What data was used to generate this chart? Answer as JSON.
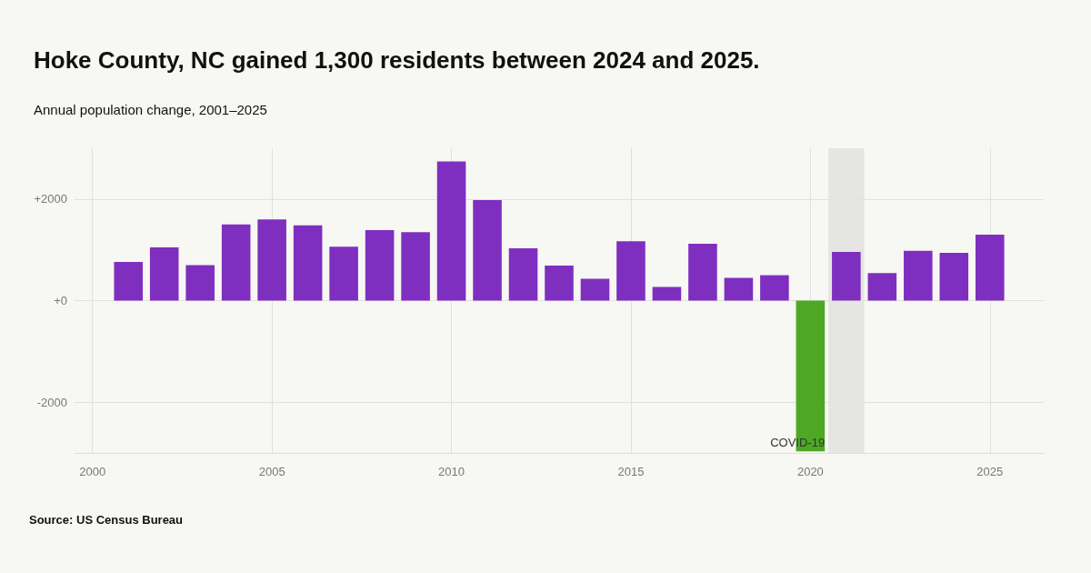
{
  "chart_data": {
    "type": "bar",
    "title": "Hoke County, NC gained 1,300 residents between 2024 and 2025.",
    "subtitle": "Annual population change, 2001–2025",
    "x": [
      2001,
      2002,
      2003,
      2004,
      2005,
      2006,
      2007,
      2008,
      2009,
      2010,
      2011,
      2012,
      2013,
      2014,
      2015,
      2016,
      2017,
      2018,
      2019,
      2020,
      2021,
      2022,
      2023,
      2024,
      2025
    ],
    "values": [
      760,
      1050,
      700,
      1500,
      1600,
      1480,
      1060,
      1390,
      1350,
      2740,
      1980,
      1030,
      690,
      430,
      1170,
      270,
      1120,
      450,
      500,
      -2970,
      960,
      540,
      980,
      940,
      1300
    ],
    "colors": [
      "#7f2fbf",
      "#7f2fbf",
      "#7f2fbf",
      "#7f2fbf",
      "#7f2fbf",
      "#7f2fbf",
      "#7f2fbf",
      "#7f2fbf",
      "#7f2fbf",
      "#7f2fbf",
      "#7f2fbf",
      "#7f2fbf",
      "#7f2fbf",
      "#7f2fbf",
      "#7f2fbf",
      "#7f2fbf",
      "#7f2fbf",
      "#7f2fbf",
      "#7f2fbf",
      "#4ea824",
      "#7f2fbf",
      "#7f2fbf",
      "#7f2fbf",
      "#7f2fbf",
      "#7f2fbf"
    ],
    "xlim": [
      1999.5,
      2026.5
    ],
    "xticks": [
      2000,
      2005,
      2010,
      2015,
      2020,
      2025
    ],
    "ylim": [
      -3000,
      3000
    ],
    "yticks": [
      {
        "value": -2000,
        "label": "-2000"
      },
      {
        "value": 0,
        "label": "+0"
      },
      {
        "value": 2000,
        "label": "+2000"
      }
    ],
    "bands": [
      {
        "axis": "x",
        "from": 2020.5,
        "to": 2021.5,
        "color": "#e2e2de"
      }
    ],
    "annotations": [
      {
        "text": "COVID-19",
        "x": 2020,
        "y": -2970
      },
      "Source: US Census Bureau"
    ],
    "grid": true
  }
}
